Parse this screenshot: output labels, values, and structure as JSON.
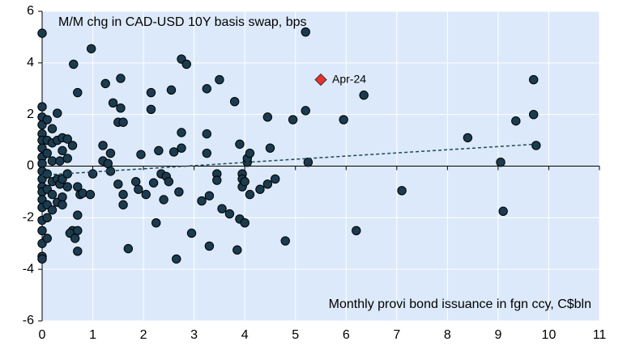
{
  "chart_data": {
    "type": "scatter",
    "title": "M/M chg in CAD-USD 10Y basis swap, bps",
    "x_label": "Monthly provi bond issuance in fgn ccy, C$bln",
    "color": "#1b3b4f",
    "plot_background": "#dce9fa",
    "grid": true,
    "xlim": [
      0,
      11
    ],
    "ylim": [
      -6,
      6
    ],
    "xticks": [
      0,
      1,
      2,
      3,
      4,
      5,
      6,
      7,
      8,
      9,
      10,
      11
    ],
    "yticks": [
      -6,
      -4,
      -2,
      0,
      2,
      4,
      6
    ],
    "x": [
      0,
      0,
      0,
      0,
      0,
      0,
      0,
      0,
      0,
      0,
      0,
      0,
      0,
      0,
      0,
      0,
      0,
      0,
      0,
      0,
      0.1,
      0.1,
      0.1,
      0.1,
      0.1,
      0.1,
      0.1,
      0.1,
      0.2,
      0.2,
      0.2,
      0.2,
      0.2,
      0.2,
      0.3,
      0.3,
      0.3,
      0.3,
      0.35,
      0.35,
      0.4,
      0.4,
      0.4,
      0.4,
      0.4,
      0.5,
      0.5,
      0.5,
      0.5,
      0.6,
      0.6,
      0.55,
      0.62,
      0.65,
      0.7,
      0.7,
      0.7,
      0.7,
      0.7,
      0.75,
      0.8,
      0.95,
      0.97,
      1.0,
      1.2,
      1.2,
      1.25,
      1.3,
      1.35,
      1.35,
      1.4,
      1.5,
      1.5,
      1.55,
      1.55,
      1.6,
      1.6,
      1.6,
      1.7,
      1.85,
      1.9,
      1.95,
      2.05,
      2.15,
      2.15,
      2.2,
      2.25,
      2.3,
      2.35,
      2.4,
      2.45,
      2.5,
      2.55,
      2.6,
      2.65,
      2.7,
      2.75,
      2.75,
      2.75,
      2.85,
      2.95,
      3.15,
      3.25,
      3.25,
      3.25,
      3.3,
      3.3,
      3.45,
      3.45,
      3.5,
      3.55,
      3.7,
      3.8,
      3.85,
      3.9,
      3.9,
      3.95,
      3.95,
      3.95,
      4.0,
      4.0,
      4.05,
      4.05,
      4.1,
      4.1,
      4.3,
      4.45,
      4.45,
      4.5,
      4.6,
      4.8,
      4.95,
      5.2,
      5.2,
      5.25,
      5.95,
      6.2,
      6.35,
      7.1,
      8.4,
      9.05,
      9.1,
      9.35,
      9.7,
      9.7,
      9.75
    ],
    "y": [
      5.15,
      2.3,
      1.9,
      1.6,
      1.25,
      1.0,
      0.7,
      0.35,
      0.1,
      -0.2,
      -0.5,
      -0.8,
      -1.0,
      -1.3,
      -1.6,
      -2.1,
      -2.5,
      -3.0,
      -3.5,
      -3.6,
      1.8,
      1.0,
      0.5,
      -0.3,
      -0.9,
      -1.5,
      -2.0,
      -2.8,
      1.45,
      0.9,
      0.2,
      -0.6,
      -1.1,
      -1.7,
      2.05,
      1.0,
      -0.5,
      -1.4,
      0.2,
      -0.7,
      1.1,
      0.6,
      -0.5,
      -1.2,
      -1.5,
      1.05,
      0.3,
      -0.3,
      -0.8,
      0.8,
      -2.5,
      -2.6,
      3.95,
      -2.8,
      2.85,
      -1.9,
      -2.5,
      -3.3,
      -0.8,
      -1.1,
      -1.05,
      -1.1,
      4.55,
      -0.3,
      0.8,
      0.2,
      3.2,
      0.1,
      0.5,
      -0.2,
      2.45,
      1.7,
      -0.7,
      2.25,
      3.4,
      1.7,
      -1.1,
      -1.5,
      -3.2,
      -0.6,
      -0.9,
      0.45,
      -1.1,
      2.85,
      2.2,
      -0.65,
      -2.2,
      0.6,
      -0.3,
      -1.3,
      -0.4,
      -0.6,
      2.95,
      0.55,
      -3.6,
      -1.0,
      4.15,
      1.3,
      0.7,
      3.95,
      -2.6,
      -1.35,
      3.0,
      1.25,
      0.5,
      -3.1,
      -1.15,
      -0.3,
      -0.55,
      3.35,
      -1.65,
      -1.85,
      2.5,
      -3.25,
      0.85,
      -2.05,
      -0.3,
      -0.5,
      -0.8,
      -2.2,
      -0.6,
      0.15,
      0.3,
      0.5,
      -1.1,
      -0.9,
      1.9,
      -0.7,
      0.7,
      -0.5,
      -2.9,
      1.8,
      5.2,
      2.15,
      0.15,
      1.8,
      -2.5,
      2.75,
      -0.95,
      1.1,
      0.15,
      -1.75,
      1.75,
      3.35,
      2.0,
      0.8
    ],
    "trendline": {
      "x": [
        0,
        9.75
      ],
      "y": [
        -0.35,
        0.85
      ],
      "color": "#1b4a5a"
    },
    "highlight": {
      "label": "Apr-24",
      "x": 5.5,
      "y": 3.35,
      "color": "#e8312f"
    }
  }
}
